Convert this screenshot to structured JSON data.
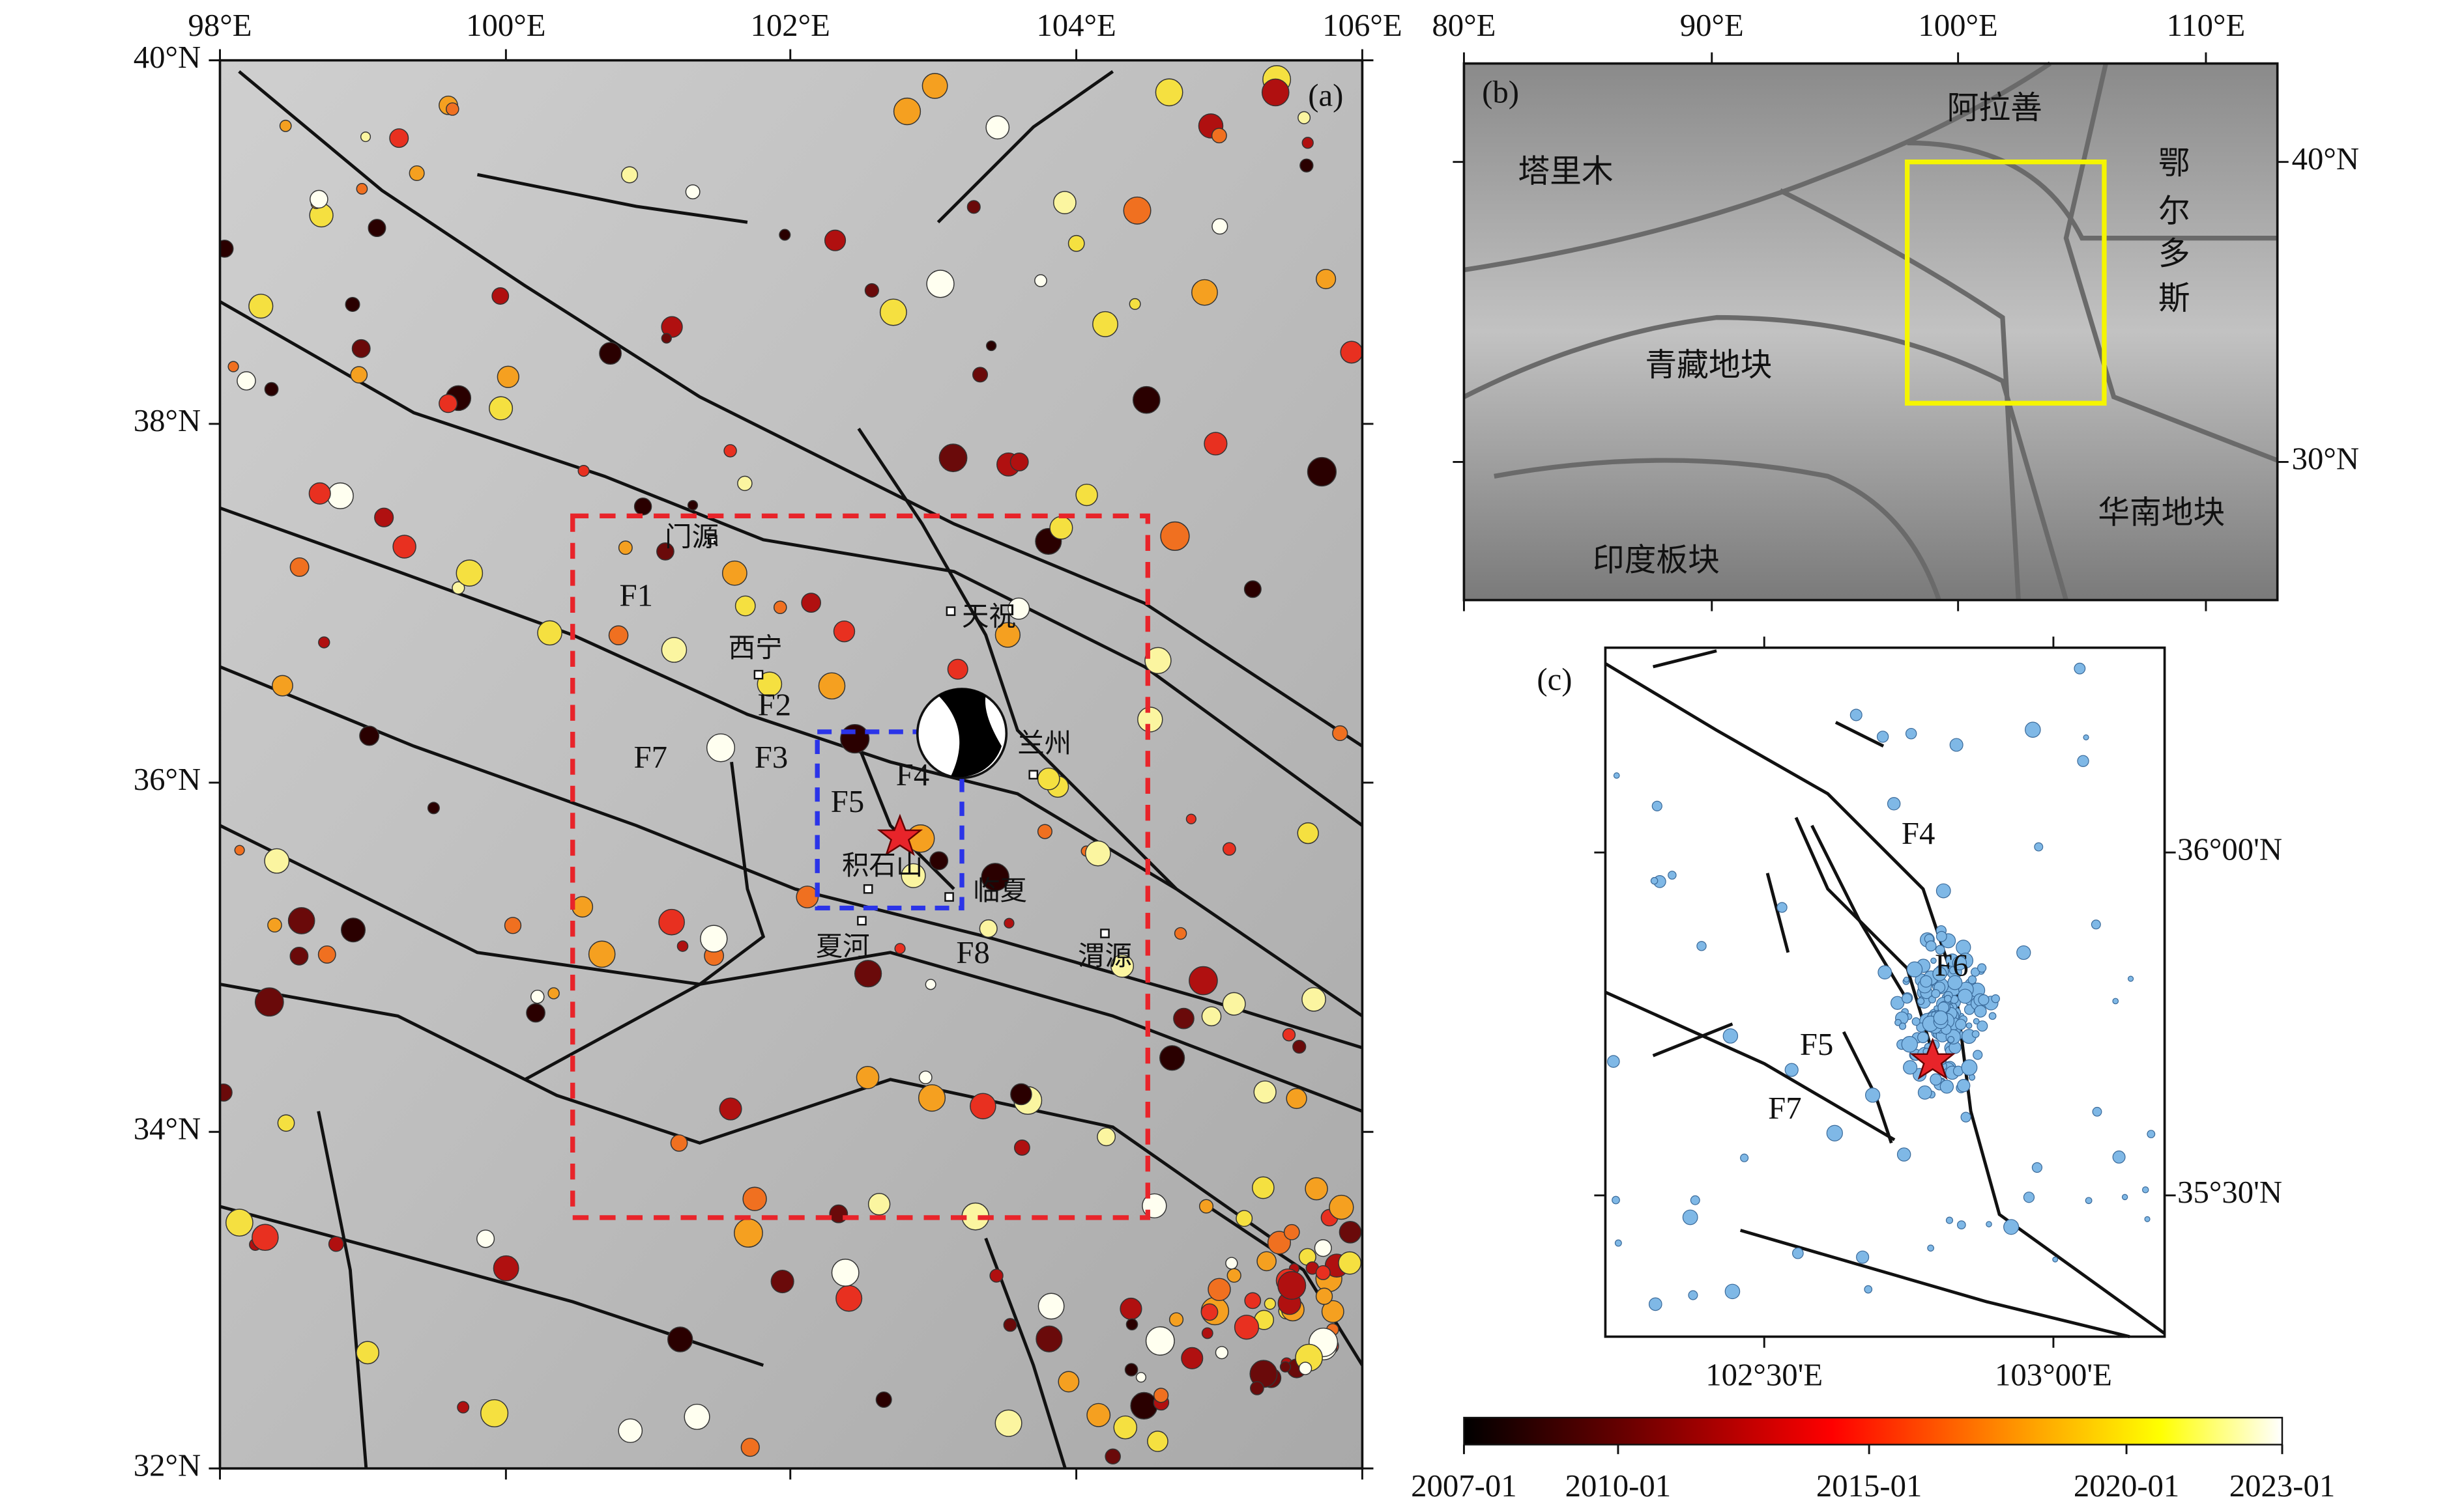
{
  "panel_a": {
    "label": "(a)",
    "x_ticks": [
      "98°E",
      "100°E",
      "102°E",
      "104°E",
      "106°E"
    ],
    "y_ticks": [
      "40°N",
      "38°N",
      "36°N",
      "34°N",
      "32°N"
    ],
    "places": [
      "门源",
      "天祝",
      "西宁",
      "兰州",
      "积石山",
      "临夏",
      "夏河",
      "渭源"
    ],
    "faults": [
      "F1",
      "F2",
      "F3",
      "F4",
      "F5",
      "F7",
      "F8"
    ]
  },
  "panel_b": {
    "label": "(b)",
    "x_ticks": [
      "80°E",
      "90°E",
      "100°E",
      "110°E"
    ],
    "y_ticks": [
      "40°N",
      "30°N"
    ],
    "regions": [
      "塔里木",
      "阿拉善",
      "鄂",
      "尔",
      "多",
      "斯",
      "青藏地块",
      "华南地块",
      "印度板块"
    ]
  },
  "panel_c": {
    "label": "(c)",
    "x_ticks": [
      "102°30'E",
      "103°00'E"
    ],
    "y_ticks": [
      "36°00'N",
      "35°30'N"
    ],
    "faults": [
      "F4",
      "F6",
      "F5",
      "F7"
    ]
  },
  "colorbar": {
    "ticks": [
      "2007-01",
      "2010-01",
      "2015-01",
      "2020-01",
      "2023-01"
    ]
  }
}
